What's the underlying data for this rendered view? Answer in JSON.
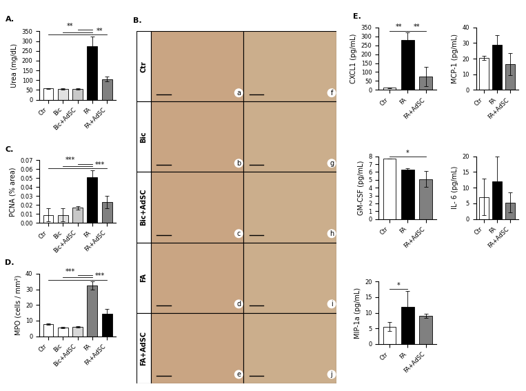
{
  "chart_data": [
    {
      "type": "bar",
      "title": "A.",
      "y_label": "Urea (mg/dL)",
      "categories": [
        "Ctr",
        "Bic",
        "Bic+AdSC",
        "FA",
        "FA+AdSC"
      ],
      "values": [
        57,
        55,
        55,
        272,
        105
      ],
      "errors": [
        3,
        4,
        3,
        50,
        12
      ],
      "colors": [
        "#ffffff",
        "#e0e0e0",
        "#c8c8c8",
        "#000000",
        "#808080"
      ],
      "ylim": [
        0,
        350
      ],
      "yticks": [
        0,
        50,
        100,
        150,
        200,
        250,
        300,
        350
      ],
      "annotations": [
        {
          "label": "**",
          "from": [
            "Ctr",
            "Bic",
            "Bic+AdSC"
          ],
          "to": "FA"
        },
        {
          "label": "**",
          "from": [
            "FA"
          ],
          "to": "FA+AdSC"
        }
      ]
    },
    {
      "type": "bar",
      "title": "C.",
      "y_label": "PCNA (% area)",
      "categories": [
        "Ctr",
        "Bic",
        "Bic+AdSC",
        "FA",
        "FA+AdSC"
      ],
      "values": [
        0.009,
        0.009,
        0.017,
        0.051,
        0.023
      ],
      "errors": [
        0.007,
        0.007,
        0.002,
        0.008,
        0.007
      ],
      "colors": [
        "#ffffff",
        "#e0e0e0",
        "#c8c8c8",
        "#000000",
        "#808080"
      ],
      "ylim": [
        0,
        0.07
      ],
      "yticks": [
        {
          "value": 0,
          "label": "0.00"
        },
        {
          "value": 0.01,
          "label": "0.01"
        },
        {
          "value": 0.02,
          "label": "0.02"
        },
        {
          "value": 0.03,
          "label": "0.03"
        },
        {
          "value": 0.04,
          "label": "0.04"
        },
        {
          "value": 0.05,
          "label": "0.05"
        },
        {
          "value": 0.06,
          "label": "0.06"
        },
        {
          "value": 0.07,
          "label": "0.07"
        }
      ],
      "annotations": [
        {
          "label": "***",
          "from": [
            "Ctr",
            "Bic",
            "Bic+AdSC"
          ],
          "to": "FA"
        },
        {
          "label": "***",
          "from": [
            "FA"
          ],
          "to": "FA+AdSC"
        }
      ]
    },
    {
      "type": "bar",
      "title": "D.",
      "y_label": "MPO (cells / mm²)",
      "categories": [
        "Ctr",
        "Bic",
        "Bic+AdSC",
        "FA",
        "FA+AdSC"
      ],
      "values": [
        7.8,
        5.6,
        6.0,
        32.5,
        14.5
      ],
      "errors": [
        0.4,
        0.3,
        0.6,
        2.5,
        3
      ],
      "colors": [
        "#ffffff",
        "#ffffff",
        "#d8d8d8",
        "#808080",
        "#000000"
      ],
      "ylim": [
        0,
        40
      ],
      "yticks": [
        0,
        10,
        20,
        30,
        40
      ],
      "annotations": [
        {
          "label": "***",
          "from": [
            "Ctr",
            "Bic",
            "Bic+AdSC"
          ],
          "to": "FA"
        },
        {
          "label": "***",
          "from": [
            "FA"
          ],
          "to": "FA+AdSC"
        }
      ]
    },
    {
      "type": "bar",
      "title": "E.",
      "y_label": "CXCL1 (pg/mL)",
      "categories": [
        "Ctr",
        "FA",
        "FA+AdSC"
      ],
      "values": [
        12,
        280,
        75
      ],
      "errors": [
        3,
        40,
        55
      ],
      "colors": [
        "#ffffff",
        "#000000",
        "#808080"
      ],
      "ylim": [
        0,
        350
      ],
      "yticks": [
        0,
        50,
        100,
        150,
        200,
        250,
        300,
        350
      ],
      "annotations": [
        {
          "label": "**",
          "from": [
            "Ctr"
          ],
          "to": "FA"
        },
        {
          "label": "**",
          "from": [
            "FA"
          ],
          "to": "FA+AdSC"
        }
      ]
    },
    {
      "type": "bar",
      "y_label": "MCP-1 (pg/mL)",
      "categories": [
        "Ctr",
        "FA",
        "FA+AdSC"
      ],
      "values": [
        20.5,
        29,
        16.5
      ],
      "errors": [
        1.5,
        6,
        7
      ],
      "colors": [
        "#ffffff",
        "#000000",
        "#808080"
      ],
      "ylim": [
        0,
        40
      ],
      "yticks": [
        0,
        10,
        20,
        30,
        40
      ],
      "annotations": []
    },
    {
      "type": "bar",
      "y_label": "GM-CSF (pg/mL)",
      "categories": [
        "Ctr",
        "FA",
        "FA+AdSC"
      ],
      "values": [
        7.7,
        6.3,
        5.1
      ],
      "errors": [
        0,
        0.2,
        1.0
      ],
      "colors": [
        "#ffffff",
        "#000000",
        "#808080"
      ],
      "ylim": [
        0,
        8
      ],
      "yticks": [
        0,
        1,
        2,
        3,
        4,
        5,
        6,
        7,
        8
      ],
      "annotations": [
        {
          "label": "*",
          "from": [
            "Ctr"
          ],
          "to": "FA+AdSC"
        }
      ]
    },
    {
      "type": "bar",
      "y_label": "IL- 6 (pg/mL)",
      "categories": [
        "Ctr",
        "FA",
        "FA+AdSC"
      ],
      "values": [
        7,
        12,
        5.2
      ],
      "errors": [
        5.8,
        8,
        3.2
      ],
      "colors": [
        "#ffffff",
        "#000000",
        "#808080"
      ],
      "ylim": [
        0,
        20
      ],
      "yticks": [
        0,
        5,
        10,
        15,
        20
      ],
      "annotations": []
    },
    {
      "type": "bar",
      "y_label": "MIP-1a (pg/mL)",
      "categories": [
        "Ctr",
        "FA",
        "FA+AdSC"
      ],
      "values": [
        5.6,
        12,
        9
      ],
      "errors": [
        1.5,
        5,
        0.6
      ],
      "colors": [
        "#ffffff",
        "#000000",
        "#808080"
      ],
      "ylim": [
        0,
        20
      ],
      "yticks": [
        0,
        5,
        10,
        15,
        20
      ],
      "annotations": [
        {
          "label": "*",
          "from": [
            "Ctr"
          ],
          "to": "FA"
        }
      ]
    }
  ],
  "image_panel": {
    "title": "B.",
    "rows": [
      "Ctr",
      "Bic",
      "Bic+AdSC",
      "FA",
      "FA+AdSC"
    ],
    "letters": [
      [
        "a",
        "f"
      ],
      [
        "b",
        "g"
      ],
      [
        "c",
        "h"
      ],
      [
        "d",
        "i"
      ],
      [
        "e",
        "j"
      ]
    ]
  }
}
